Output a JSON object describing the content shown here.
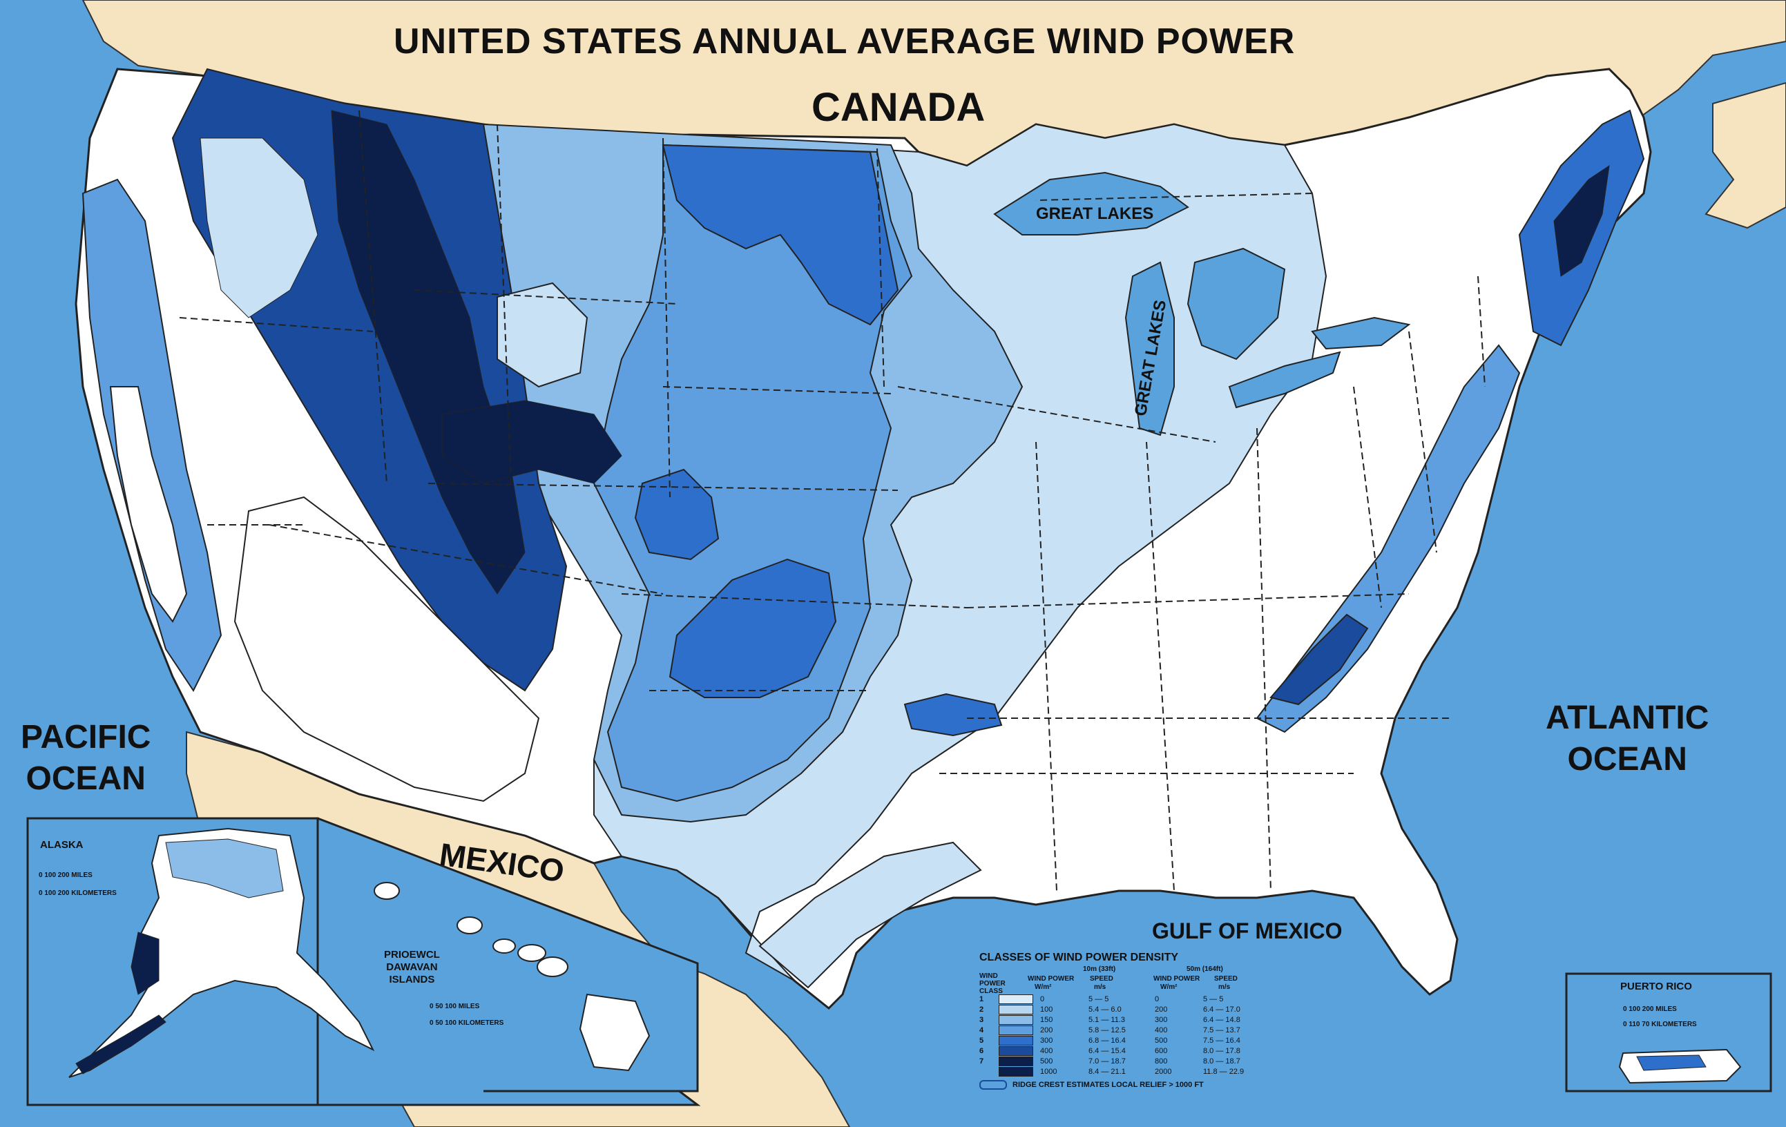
{
  "title": "UNITED STATES ANNUAL AVERAGE WIND POWER",
  "labels": {
    "canada": "CANADA",
    "pacific_line1": "PACIFIC",
    "pacific_line2": "OCEAN",
    "atlantic_line1": "ATLANTIC",
    "atlantic_line2": "OCEAN",
    "mexico": "MEXICO",
    "gulf": "GULF OF MEXICO",
    "great_lakes_1": "GREAT LAKES",
    "great_lakes_2": "GREAT LAKES"
  },
  "insets": {
    "alaska": {
      "name": "ALASKA",
      "scale_miles": "0   100   200   MILES",
      "scale_km": "0  100  200  KILOMETERS"
    },
    "hawaii": {
      "name_line1": "PRIOEWCL",
      "name_line2": "DAWAVAN",
      "name_line3": "ISLANDS",
      "scale_miles": "0    50   100   MILES",
      "scale_km": "0   50   100   KILOMETERS"
    },
    "puerto_rico": {
      "name": "PUERTO RICO",
      "scale_miles": "0   100   200   MILES",
      "scale_km": "0   110   70   KILOMETERS"
    }
  },
  "legend": {
    "title": "CLASSES OF WIND POWER DENSITY",
    "group1": "10m (33ft)",
    "group2": "50m (164ft)",
    "col_class": "WIND POWER CLASS",
    "col_power": "WIND POWER",
    "col_speed": "SPEED",
    "unit_power": "W/m²",
    "unit_speed": "m/s",
    "classes": [
      {
        "cls": "1",
        "color": "#dcecf8",
        "p10": "0",
        "s10": "5 — 5",
        "p50": "0",
        "s50": "5 — 5"
      },
      {
        "cls": "2",
        "color": "#b7d6f0",
        "p10": "100",
        "s10": "5.4 — 6.0",
        "p50": "200",
        "s50": "6.4 — 17.0"
      },
      {
        "cls": "3",
        "color": "#8cbde9",
        "p10": "150",
        "s10": "5.1 — 11.3",
        "p50": "300",
        "s50": "6.4 — 14.8"
      },
      {
        "cls": "4",
        "color": "#5f9fdf",
        "p10": "200",
        "s10": "5.8 — 12.5",
        "p50": "400",
        "s50": "7.5 — 13.7"
      },
      {
        "cls": "5",
        "color": "#2e6fcc",
        "p10": "300",
        "s10": "6.8 — 16.4",
        "p50": "500",
        "s50": "7.5 — 16.4"
      },
      {
        "cls": "6",
        "color": "#1a4b9c",
        "p10": "400",
        "s10": "6.4 — 15.4",
        "p50": "600",
        "s50": "8.0 — 17.8"
      },
      {
        "cls": "7",
        "color": "#0c1f4a",
        "p10": "500",
        "s10": "7.0 — 18.7",
        "p50": "800",
        "s50": "8.0 — 18.7"
      },
      {
        "cls": "",
        "color": "#0c1f4a",
        "p10": "1000",
        "s10": "8.4 — 21.1",
        "p50": "2000",
        "s50": "11.8 — 22.9"
      }
    ],
    "note": "RIDGE CREST ESTIMATES LOCAL RELIEF > 1000 FT"
  },
  "colors": {
    "ocean": "#5aa2dc",
    "land_foreign": "#f6e4c0",
    "class1": "#ffffff",
    "class2": "#c9e1f5",
    "class3": "#8cbde9",
    "class4": "#5f9fdf",
    "class5": "#2e6fcc",
    "class6": "#1a4b9c",
    "class7": "#0c1f4a"
  }
}
